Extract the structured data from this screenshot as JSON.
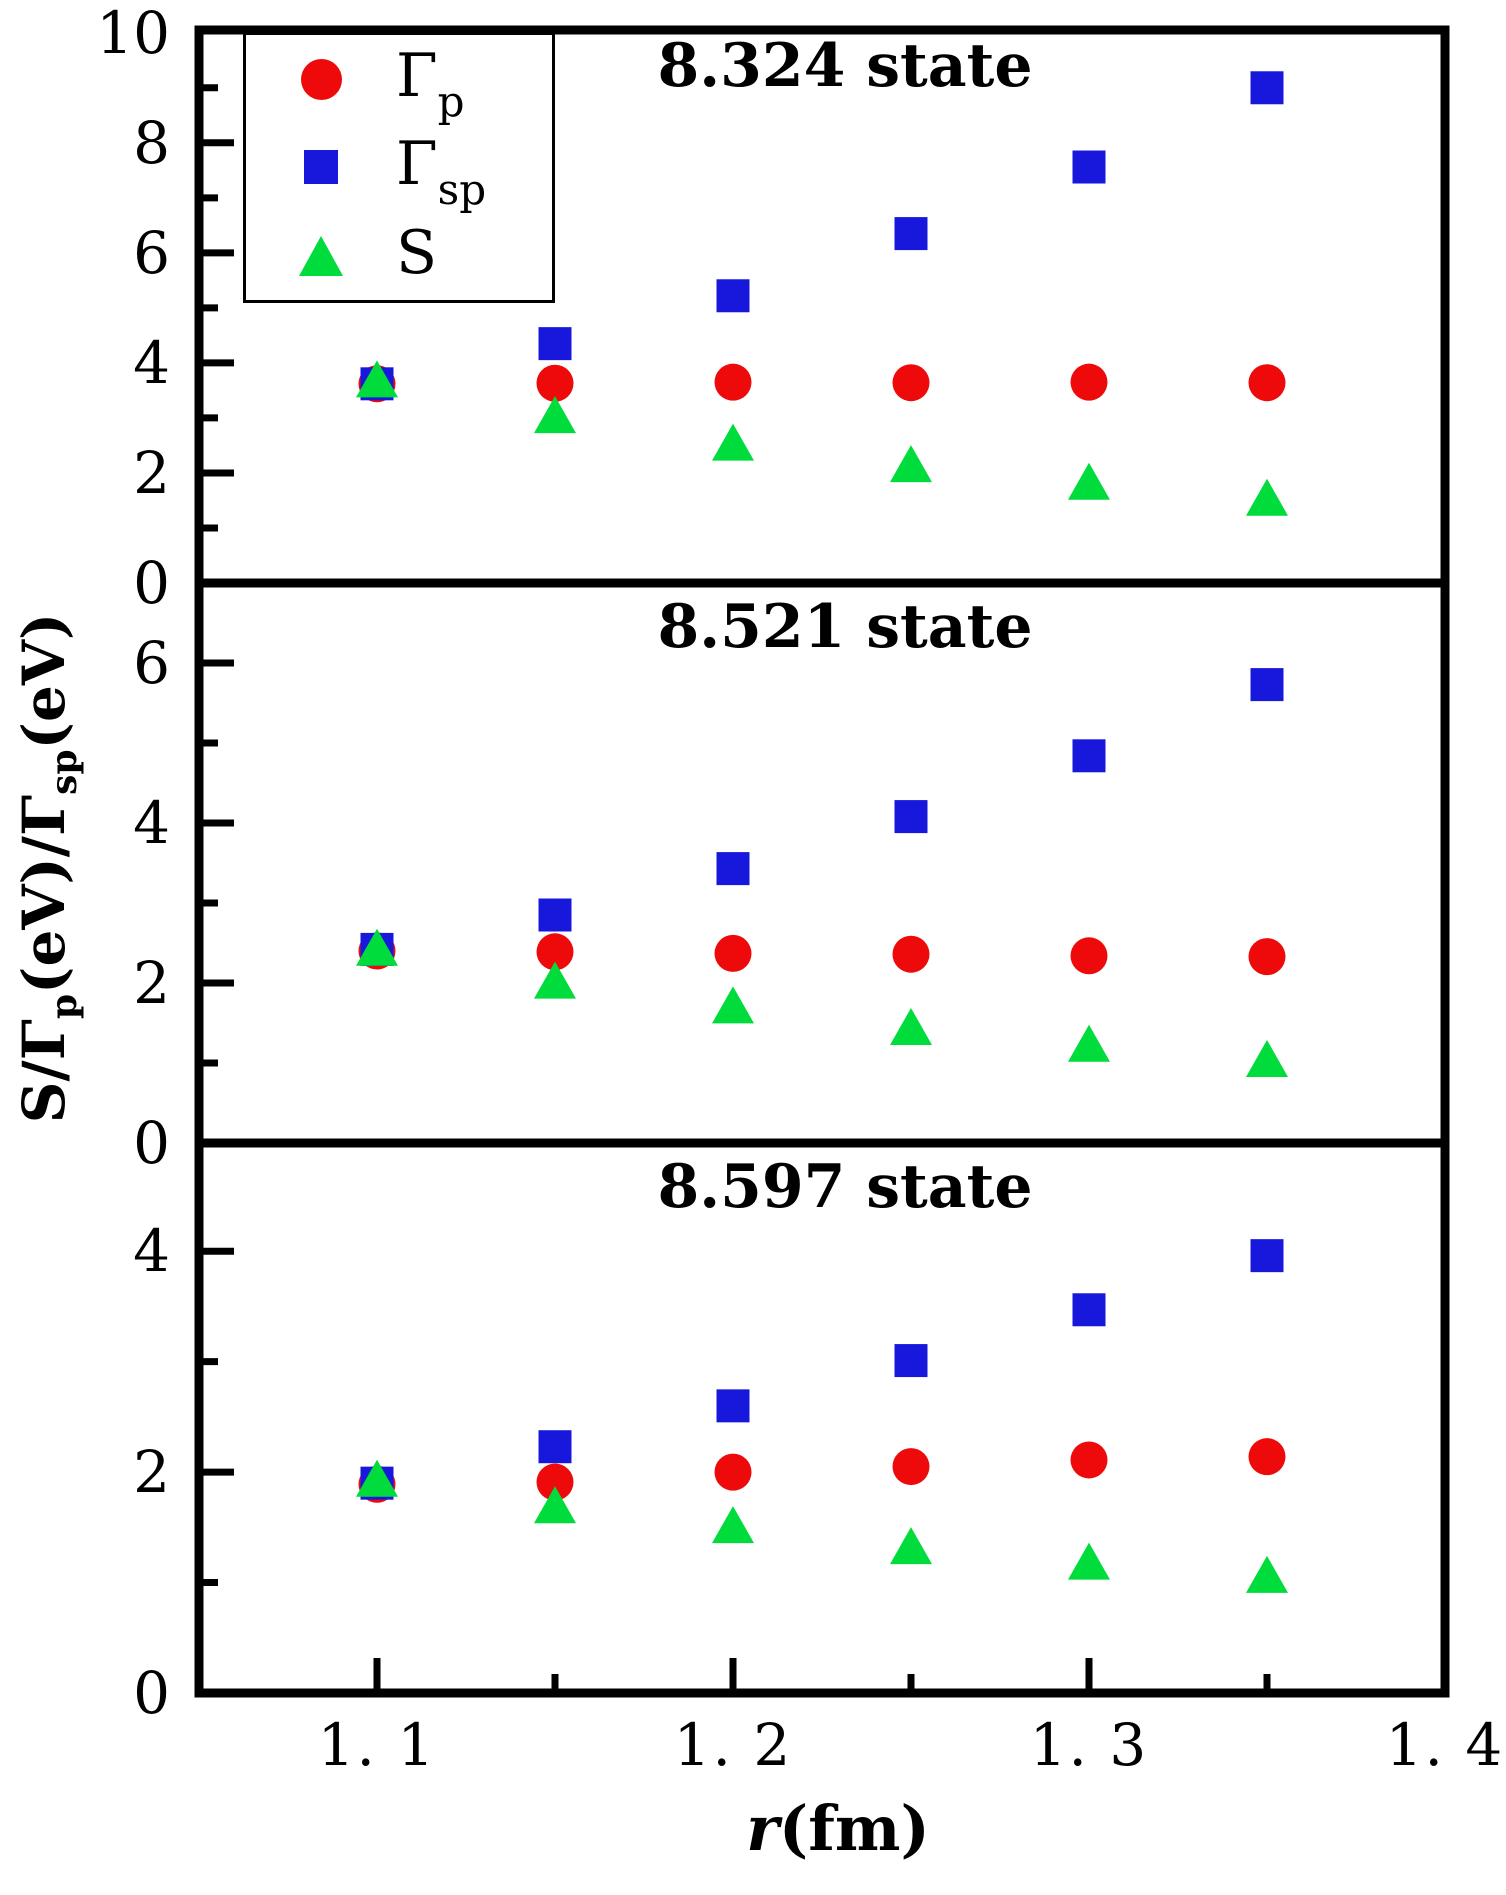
{
  "figure": {
    "x_label_var": "r",
    "x_label_rest": "(fm)",
    "y_label_parts": [
      {
        "t": "S/Γ"
      },
      {
        "t": "p"
      },
      {
        "t": "(eV)/Γ"
      },
      {
        "t": "sp"
      },
      {
        "t": "(eV)"
      }
    ]
  },
  "legend": {
    "items": [
      {
        "marker": "circle",
        "color": "#ee0a0a",
        "label": "Γ",
        "sub": "p"
      },
      {
        "marker": "square",
        "color": "#1818dd",
        "label": "Γ",
        "sub": "sp"
      },
      {
        "marker": "triangle",
        "color": "#00dc3c",
        "label": "S",
        "sub": ""
      }
    ]
  },
  "chart_data": {
    "type": "scatter",
    "xlabel": "r(fm)",
    "ylabel": "S/Γp(eV)/Γsp(eV)",
    "x": [
      1.1,
      1.15,
      1.2,
      1.25,
      1.3,
      1.35
    ],
    "xlim": [
      1.05,
      1.4
    ],
    "x_major_ticks": [
      1.1,
      1.2,
      1.3,
      1.4
    ],
    "x_minor_ticks": [
      1.15,
      1.25,
      1.35
    ],
    "x_tick_labels": [
      "1. 1",
      "1. 2",
      "1. 3",
      "1. 4"
    ],
    "legend_position": "upper-left",
    "grid": false,
    "panels": [
      {
        "title": "8.324 state",
        "ylim": [
          0,
          10.05
        ],
        "y_major_ticks": [
          0,
          2,
          4,
          6,
          8,
          10
        ],
        "y_minor_ticks": [
          1,
          3,
          5,
          7,
          9
        ],
        "series": [
          {
            "name": "Γp",
            "marker": "circle",
            "color": "#ee0a0a",
            "values": [
              3.62,
              3.63,
              3.65,
              3.64,
              3.65,
              3.64
            ]
          },
          {
            "name": "Γsp",
            "marker": "square",
            "color": "#1818dd",
            "values": [
              3.62,
              4.35,
              5.22,
              6.35,
              7.56,
              9.0
            ]
          },
          {
            "name": "S",
            "marker": "triangle",
            "color": "#00dc3c",
            "values": [
              3.7,
              3.05,
              2.55,
              2.16,
              1.84,
              1.55
            ]
          }
        ]
      },
      {
        "title": "8.521 state",
        "ylim": [
          0,
          7.0
        ],
        "y_major_ticks": [
          0,
          2,
          4,
          6
        ],
        "y_minor_ticks": [
          1,
          3,
          5
        ],
        "series": [
          {
            "name": "Γp",
            "marker": "circle",
            "color": "#ee0a0a",
            "values": [
              2.4,
              2.39,
              2.37,
              2.36,
              2.34,
              2.33
            ]
          },
          {
            "name": "Γsp",
            "marker": "square",
            "color": "#1818dd",
            "values": [
              2.42,
              2.85,
              3.43,
              4.08,
              4.84,
              5.73
            ]
          },
          {
            "name": "S",
            "marker": "triangle",
            "color": "#00dc3c",
            "values": [
              2.44,
              2.03,
              1.72,
              1.45,
              1.24,
              1.05
            ]
          }
        ]
      },
      {
        "title": "8.597 state",
        "ylim": [
          0,
          4.98
        ],
        "y_major_ticks": [
          0,
          2,
          4
        ],
        "y_minor_ticks": [
          1,
          3
        ],
        "series": [
          {
            "name": "Γp",
            "marker": "circle",
            "color": "#ee0a0a",
            "values": [
              1.89,
              1.91,
              2.0,
              2.05,
              2.11,
              2.14
            ]
          },
          {
            "name": "Γsp",
            "marker": "square",
            "color": "#1818dd",
            "values": [
              1.9,
              2.23,
              2.6,
              3.01,
              3.47,
              3.96
            ]
          },
          {
            "name": "S",
            "marker": "triangle",
            "color": "#00dc3c",
            "values": [
              1.94,
              1.7,
              1.52,
              1.33,
              1.19,
              1.07
            ]
          }
        ]
      }
    ]
  }
}
